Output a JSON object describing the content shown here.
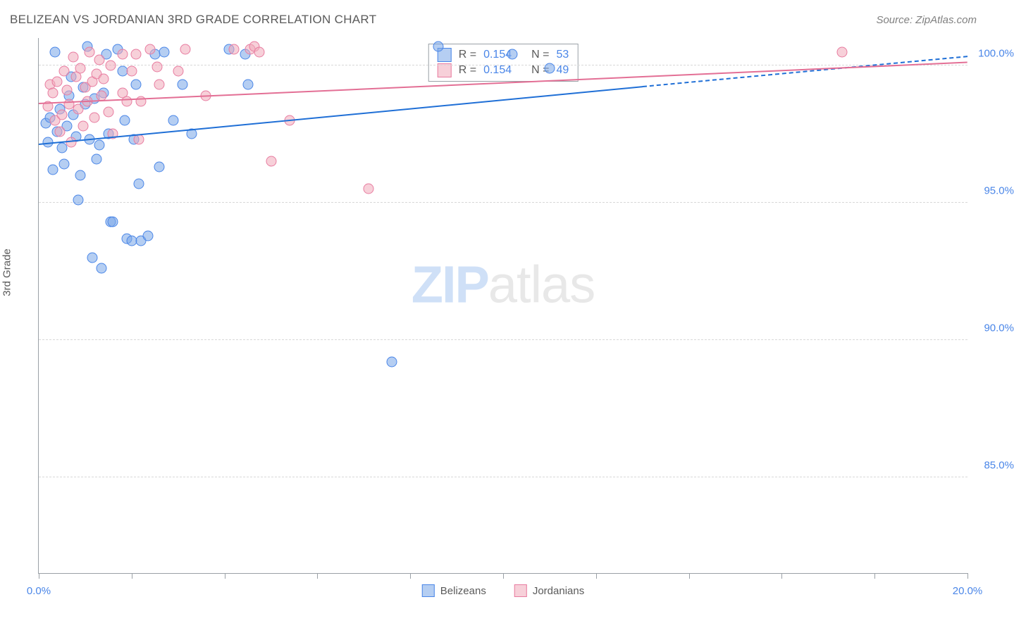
{
  "title": "BELIZEAN VS JORDANIAN 3RD GRADE CORRELATION CHART",
  "source": "Source: ZipAtlas.com",
  "ylabel": "3rd Grade",
  "watermark": {
    "zip": "ZIP",
    "atlas": "atlas"
  },
  "xaxis": {
    "min": 0.0,
    "max": 20.0,
    "ticks_at": [
      0,
      2,
      4,
      6,
      8,
      10,
      12,
      14,
      16,
      18,
      20
    ],
    "labels": [
      {
        "at": 0.0,
        "text": "0.0%"
      },
      {
        "at": 20.0,
        "text": "20.0%"
      }
    ]
  },
  "yaxis": {
    "min": 81.5,
    "max": 101.0,
    "grid": [
      85.0,
      90.0,
      95.0,
      100.0
    ],
    "labels": [
      {
        "at": 85.0,
        "text": "85.0%"
      },
      {
        "at": 90.0,
        "text": "90.0%"
      },
      {
        "at": 95.0,
        "text": "95.0%"
      },
      {
        "at": 100.0,
        "text": "100.0%"
      }
    ]
  },
  "series": [
    {
      "name": "Belizeans",
      "marker_size": 15,
      "fill": "rgba(120,166,231,0.55)",
      "stroke": "#4a86e8",
      "points": [
        [
          0.15,
          97.9
        ],
        [
          0.2,
          97.2
        ],
        [
          0.25,
          98.1
        ],
        [
          0.3,
          96.2
        ],
        [
          0.35,
          100.5
        ],
        [
          0.4,
          97.6
        ],
        [
          0.45,
          98.4
        ],
        [
          0.5,
          97.0
        ],
        [
          0.55,
          96.4
        ],
        [
          0.6,
          97.8
        ],
        [
          0.65,
          98.9
        ],
        [
          0.7,
          99.6
        ],
        [
          0.75,
          98.2
        ],
        [
          0.8,
          97.4
        ],
        [
          0.85,
          95.1
        ],
        [
          0.9,
          96.0
        ],
        [
          0.95,
          99.2
        ],
        [
          1.0,
          98.6
        ],
        [
          1.05,
          100.7
        ],
        [
          1.1,
          97.3
        ],
        [
          1.15,
          93.0
        ],
        [
          1.2,
          98.8
        ],
        [
          1.25,
          96.6
        ],
        [
          1.3,
          97.1
        ],
        [
          1.35,
          92.6
        ],
        [
          1.4,
          99.0
        ],
        [
          1.5,
          97.5
        ],
        [
          1.55,
          94.3
        ],
        [
          1.6,
          94.3
        ],
        [
          1.7,
          100.6
        ],
        [
          1.8,
          99.8
        ],
        [
          1.85,
          98.0
        ],
        [
          1.9,
          93.7
        ],
        [
          2.0,
          93.6
        ],
        [
          2.05,
          97.3
        ],
        [
          2.1,
          99.3
        ],
        [
          2.15,
          95.7
        ],
        [
          2.2,
          93.6
        ],
        [
          2.35,
          93.8
        ],
        [
          2.5,
          100.4
        ],
        [
          2.6,
          96.3
        ],
        [
          2.7,
          100.5
        ],
        [
          2.9,
          98.0
        ],
        [
          3.1,
          99.3
        ],
        [
          3.3,
          97.5
        ],
        [
          4.1,
          100.6
        ],
        [
          4.5,
          99.3
        ],
        [
          7.6,
          89.2
        ],
        [
          8.6,
          100.7
        ],
        [
          10.2,
          100.4
        ],
        [
          11.0,
          99.9
        ],
        [
          4.45,
          100.4
        ],
        [
          1.45,
          100.4
        ]
      ],
      "trend": {
        "solid": {
          "x1": 0.0,
          "y1": 97.1,
          "x2": 13.0,
          "y2": 99.2
        },
        "dashed": {
          "x1": 13.0,
          "y1": 99.2,
          "x2": 20.0,
          "y2": 100.3
        },
        "width": 2.5,
        "color": "#1f6fd6"
      }
    },
    {
      "name": "Jordanians",
      "marker_size": 15,
      "fill": "rgba(241,169,186,0.55)",
      "stroke": "#e87ca0",
      "points": [
        [
          0.2,
          98.5
        ],
        [
          0.25,
          99.3
        ],
        [
          0.3,
          99.0
        ],
        [
          0.35,
          98.0
        ],
        [
          0.4,
          99.4
        ],
        [
          0.45,
          97.6
        ],
        [
          0.5,
          98.2
        ],
        [
          0.55,
          99.8
        ],
        [
          0.6,
          99.1
        ],
        [
          0.65,
          98.6
        ],
        [
          0.7,
          97.2
        ],
        [
          0.75,
          100.3
        ],
        [
          0.8,
          99.6
        ],
        [
          0.85,
          98.4
        ],
        [
          0.9,
          99.9
        ],
        [
          0.95,
          97.8
        ],
        [
          1.0,
          99.2
        ],
        [
          1.05,
          98.7
        ],
        [
          1.1,
          100.5
        ],
        [
          1.15,
          99.4
        ],
        [
          1.2,
          98.1
        ],
        [
          1.25,
          99.7
        ],
        [
          1.3,
          100.2
        ],
        [
          1.35,
          98.9
        ],
        [
          1.4,
          99.5
        ],
        [
          1.5,
          98.3
        ],
        [
          1.55,
          100.0
        ],
        [
          1.6,
          97.5
        ],
        [
          1.8,
          99.0
        ],
        [
          1.8,
          100.4
        ],
        [
          1.9,
          98.7
        ],
        [
          2.0,
          99.8
        ],
        [
          2.1,
          100.4
        ],
        [
          2.15,
          97.3
        ],
        [
          2.2,
          98.7
        ],
        [
          2.4,
          100.6
        ],
        [
          2.55,
          99.95
        ],
        [
          2.6,
          99.3
        ],
        [
          3.0,
          99.8
        ],
        [
          3.15,
          100.6
        ],
        [
          3.6,
          98.9
        ],
        [
          4.2,
          100.6
        ],
        [
          4.55,
          100.6
        ],
        [
          4.65,
          100.7
        ],
        [
          4.75,
          100.5
        ],
        [
          5.0,
          96.5
        ],
        [
          5.4,
          98.0
        ],
        [
          7.1,
          95.5
        ],
        [
          17.3,
          100.5
        ]
      ],
      "trend": {
        "solid": {
          "x1": 0.0,
          "y1": 98.6,
          "x2": 20.0,
          "y2": 100.1
        },
        "width": 2.5,
        "color": "#e36f95"
      }
    }
  ],
  "stats_box": {
    "rows": [
      {
        "swatch_fill": "rgba(120,166,231,0.55)",
        "swatch_stroke": "#4a86e8",
        "r": "0.154",
        "n": "53"
      },
      {
        "swatch_fill": "rgba(241,169,186,0.55)",
        "swatch_stroke": "#e87ca0",
        "r": "0.154",
        "n": "49"
      }
    ]
  },
  "bottom_legend": [
    {
      "swatch_fill": "rgba(120,166,231,0.55)",
      "swatch_stroke": "#4a86e8",
      "label": "Belizeans"
    },
    {
      "swatch_fill": "rgba(241,169,186,0.55)",
      "swatch_stroke": "#e87ca0",
      "label": "Jordanians"
    }
  ]
}
